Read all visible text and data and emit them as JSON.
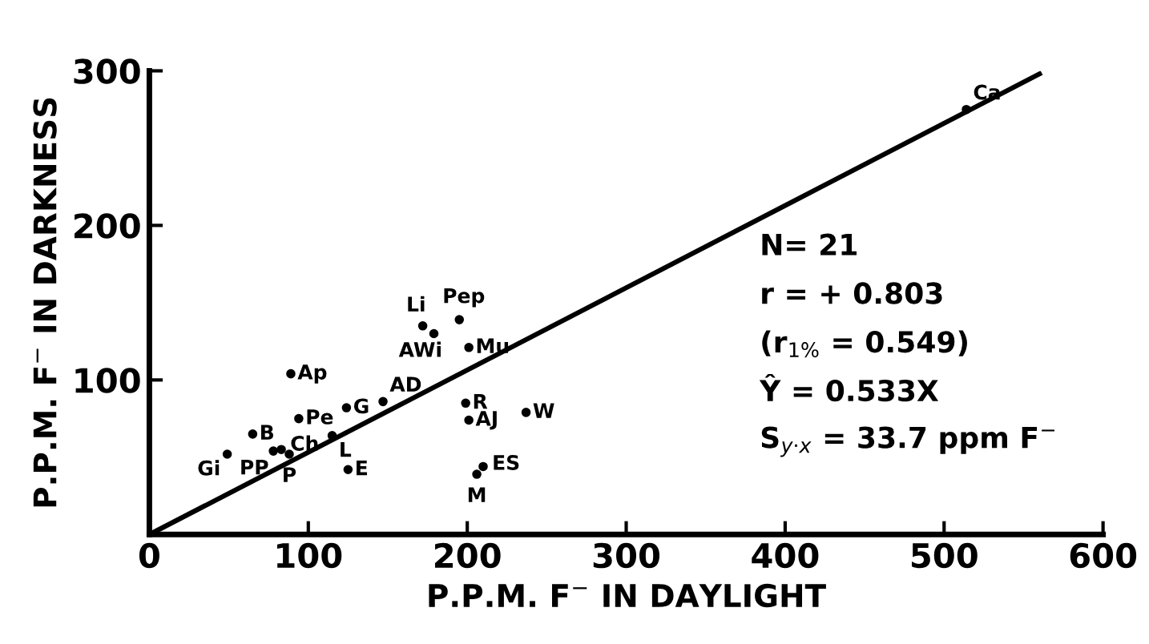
{
  "chart_data": {
    "type": "scatter",
    "xlabel": "P.P.M. F$^{−}$ IN DAYLIGHT",
    "ylabel": "P.P.M. F$^{−}$ IN DARKNESS",
    "xlim": [
      0,
      600
    ],
    "ylim": [
      0,
      300
    ],
    "xticks": [
      0,
      100,
      200,
      300,
      400,
      500,
      600
    ],
    "yticks": [
      100,
      200,
      300
    ],
    "grid": false,
    "legend": false,
    "marker": "circle",
    "series": [
      {
        "color": "#000000",
        "x": [
          514,
          89,
          94,
          124,
          147,
          65,
          49,
          78,
          83,
          88,
          115,
          125,
          172,
          179,
          195,
          201,
          199,
          201,
          237,
          210,
          206
        ],
        "values": [
          275,
          104,
          75,
          82,
          86,
          65,
          52,
          54,
          55,
          52,
          64,
          42,
          135,
          130,
          139,
          121,
          85,
          74,
          79,
          44,
          39
        ]
      },
      {
        "type": "line",
        "color": "#000000",
        "marker": "none",
        "x": [
          0,
          560
        ],
        "values": [
          0,
          298
        ]
      }
    ],
    "annotations": [
      {
        "text": "Ca",
        "x": 514,
        "y": 275
      },
      {
        "text": "Ap",
        "x": 89,
        "y": 104
      },
      {
        "text": "Pe",
        "x": 94,
        "y": 75
      },
      {
        "text": "G",
        "x": 124,
        "y": 82
      },
      {
        "text": "AD",
        "x": 147,
        "y": 86
      },
      {
        "text": "B",
        "x": 65,
        "y": 65
      },
      {
        "text": "Gi",
        "x": 49,
        "y": 52
      },
      {
        "text": "PP",
        "x": 78,
        "y": 54
      },
      {
        "text": "Ch",
        "x": 83,
        "y": 55
      },
      {
        "text": "P",
        "x": 88,
        "y": 52
      },
      {
        "text": "L",
        "x": 115,
        "y": 64
      },
      {
        "text": "E",
        "x": 125,
        "y": 42
      },
      {
        "text": "Li",
        "x": 172,
        "y": 135
      },
      {
        "text": "AWi",
        "x": 179,
        "y": 130
      },
      {
        "text": "Pep",
        "x": 195,
        "y": 139
      },
      {
        "text": "Mu",
        "x": 201,
        "y": 121
      },
      {
        "text": "R",
        "x": 199,
        "y": 85
      },
      {
        "text": "AJ",
        "x": 201,
        "y": 74
      },
      {
        "text": "W",
        "x": 237,
        "y": 79
      },
      {
        "text": "ES",
        "x": 210,
        "y": 44
      },
      {
        "text": "M",
        "x": 206,
        "y": 39
      },
      "N= 21",
      "r = + 0.803",
      "(r$_{1%}$ = 0.549)",
      "Ŷ = 0.533X",
      "S$_{y·x}$ = 33.7 ppm F$^{−}$"
    ]
  }
}
